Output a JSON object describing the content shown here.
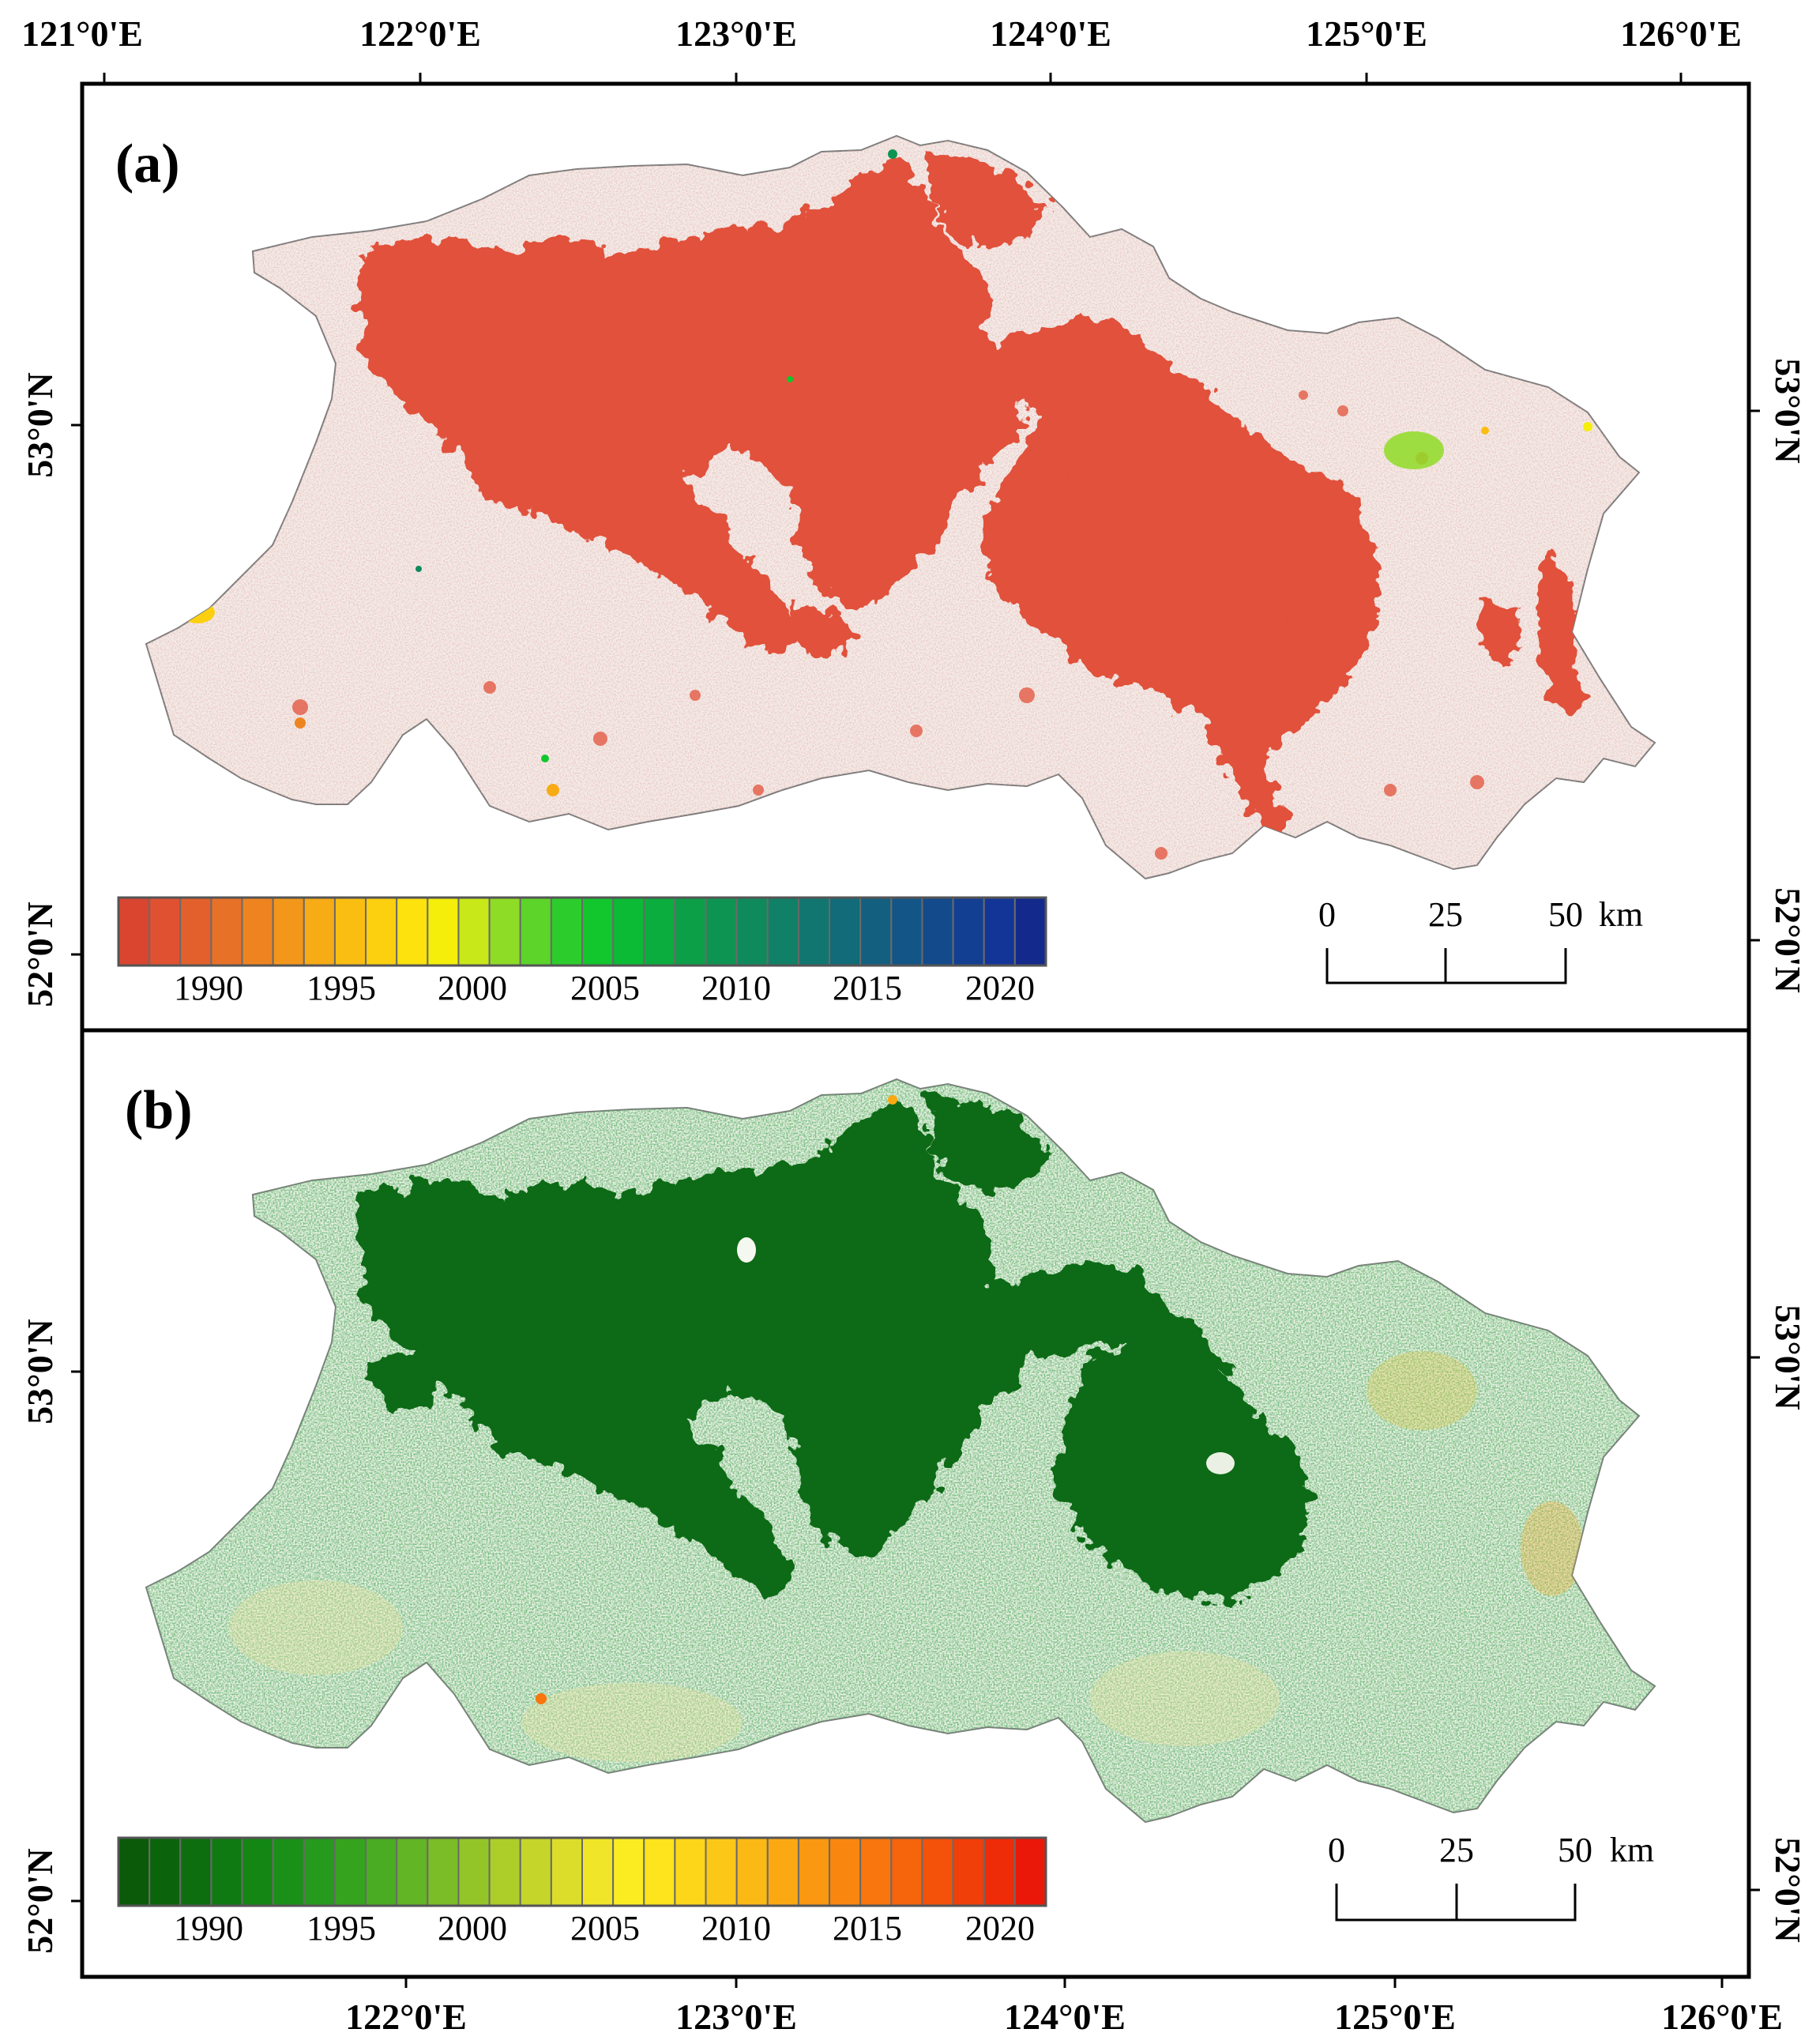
{
  "top_lon_labels": [
    "121°0'E",
    "122°0'E",
    "123°0'E",
    "124°0'E",
    "125°0'E",
    "126°0'E"
  ],
  "bottom_lon_labels": [
    "122°0'E",
    "123°0'E",
    "124°0'E",
    "125°0'E",
    "126°0'E"
  ],
  "panel_a": {
    "label": "(a)",
    "left_lat_labels": [
      "53°0'N",
      "52°0'N"
    ],
    "right_lat_labels": [
      "53°0'N",
      "52°0'N"
    ],
    "colorbar": {
      "tick_labels": [
        "1990",
        "1995",
        "2000",
        "2005",
        "2010",
        "2015",
        "2020"
      ],
      "colors": [
        "#d9452f",
        "#df5130",
        "#e3602c",
        "#e87128",
        "#ee8420",
        "#f3971a",
        "#f7ab15",
        "#fabd12",
        "#fdd00f",
        "#fde20d",
        "#f4ee0a",
        "#c8e81a",
        "#8fdc26",
        "#5cd42a",
        "#2ccc2c",
        "#12c62e",
        "#0bbb35",
        "#0aad3e",
        "#0c9f48",
        "#0e9452",
        "#0f8a5c",
        "#108066",
        "#117570",
        "#126b78",
        "#135f80",
        "#135586",
        "#134a8c",
        "#133f92",
        "#133597",
        "#132a8c"
      ]
    },
    "scale_bar": {
      "labels": [
        "0",
        "25",
        "50"
      ],
      "unit": "km"
    },
    "map": {
      "base_color": "#f1e6e2",
      "disturbance_color": "#e1513a"
    }
  },
  "panel_b": {
    "label": "(b)",
    "left_lat_labels": [
      "53°0'N",
      "52°0'N"
    ],
    "right_lat_labels": [
      "53°0'N",
      "52°0'N"
    ],
    "colorbar": {
      "tick_labels": [
        "1990",
        "1995",
        "2000",
        "2005",
        "2010",
        "2015",
        "2020"
      ],
      "colors": [
        "#0a5a0a",
        "#0b640c",
        "#0d6e0f",
        "#0f7a12",
        "#138614",
        "#1a9018",
        "#269a1c",
        "#36a31f",
        "#4aac22",
        "#62b524",
        "#7bbd26",
        "#94c528",
        "#adcd29",
        "#c5d52a",
        "#dcdd2a",
        "#f0e528",
        "#fbec22",
        "#fde41c",
        "#fdd619",
        "#fcc817",
        "#fbb915",
        "#fba913",
        "#fa9811",
        "#f9870f",
        "#f8760d",
        "#f6640b",
        "#f4520a",
        "#f13f09",
        "#ee2c08",
        "#ea1808"
      ]
    },
    "scale_bar": {
      "labels": [
        "0",
        "25",
        "50"
      ],
      "unit": "km"
    },
    "map": {
      "base_color": "#eaf1e4",
      "recovery_color": "#0d6a14"
    }
  }
}
